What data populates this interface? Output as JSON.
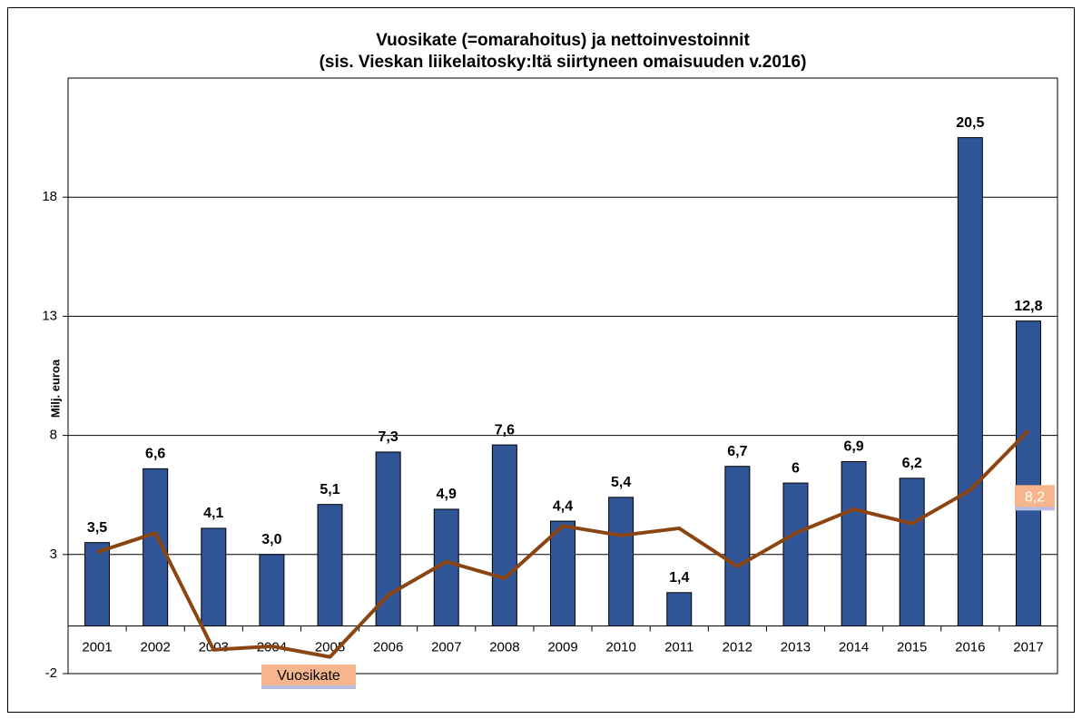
{
  "chart_data": {
    "type": "bar",
    "title": "Vuosikate (=omarahoitus) ja nettoinvestoinnit",
    "subtitle": "(sis. Vieskan liikelaitosky:ltä siirtyneen omaisuuden v.2016)",
    "y_label": "Milj. euroa",
    "categories": [
      "2001",
      "2002",
      "2003",
      "2004",
      "2005",
      "2006",
      "2007",
      "2008",
      "2009",
      "2010",
      "2011",
      "2012",
      "2013",
      "2014",
      "2015",
      "2016",
      "2017"
    ],
    "series": [
      {
        "type": "bar",
        "color": "#2f5597",
        "values": [
          3.5,
          6.6,
          4.1,
          3.0,
          5.1,
          7.3,
          4.9,
          7.6,
          4.4,
          5.4,
          1.4,
          6.7,
          6,
          6.9,
          6.2,
          20.5,
          12.8
        ],
        "value_labels": [
          "3,5",
          "6,6",
          "4,1",
          "3,0",
          "5,1",
          "7,3",
          "4,9",
          "7,6",
          "4,4",
          "5,4",
          "1,4",
          "6,7",
          "6",
          "6,9",
          "6,2",
          "20,5",
          "12,8"
        ]
      },
      {
        "type": "line",
        "name": "Vuosikate",
        "color": "#8b4513",
        "values": [
          3.1,
          3.9,
          -1.0,
          -0.85,
          -1.3,
          1.3,
          2.7,
          2.0,
          4.2,
          3.8,
          4.1,
          2.5,
          3.9,
          4.9,
          4.3,
          5.7,
          8.2
        ],
        "value_labels": [
          null,
          null,
          null,
          null,
          null,
          null,
          null,
          null,
          null,
          null,
          null,
          null,
          null,
          null,
          null,
          null,
          "8,2"
        ]
      }
    ],
    "ylim": [
      -2,
      23
    ],
    "yticks": [
      -2,
      3,
      8,
      13,
      18
    ],
    "grid": true
  }
}
